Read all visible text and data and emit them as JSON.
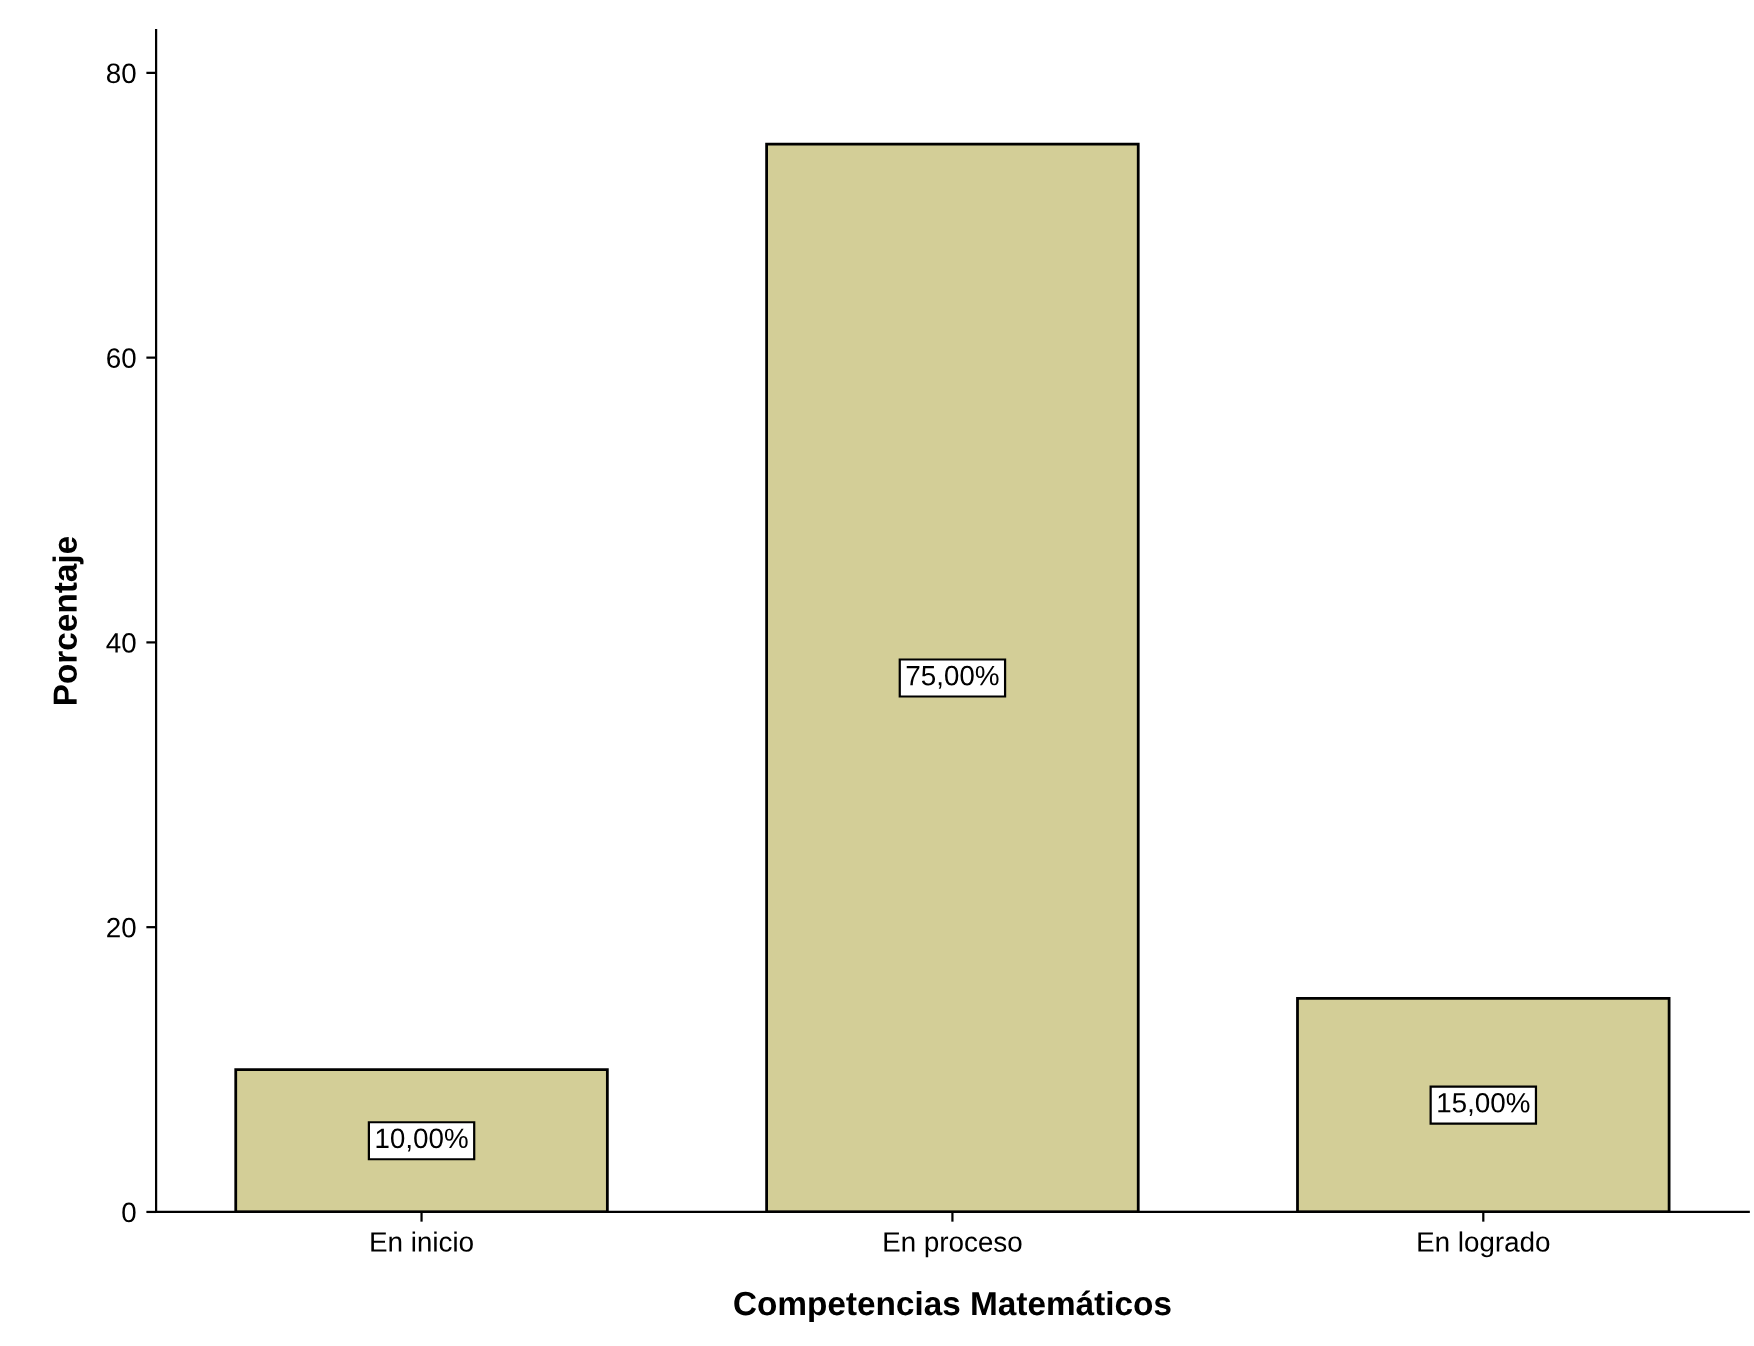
{
  "chart_data": {
    "type": "bar",
    "xlabel": "Competencias Matemáticos",
    "ylabel": "Porcentaje",
    "categories": [
      "En inicio",
      "En proceso",
      "En logrado"
    ],
    "values": [
      10,
      75,
      15
    ],
    "value_labels": [
      "10,00%",
      "75,00%",
      "15,00%"
    ],
    "color": "#d3ce97",
    "ylim": [
      0,
      83
    ],
    "yticks": [
      0,
      20,
      40,
      60,
      80
    ],
    "grid": false,
    "legend": false
  }
}
